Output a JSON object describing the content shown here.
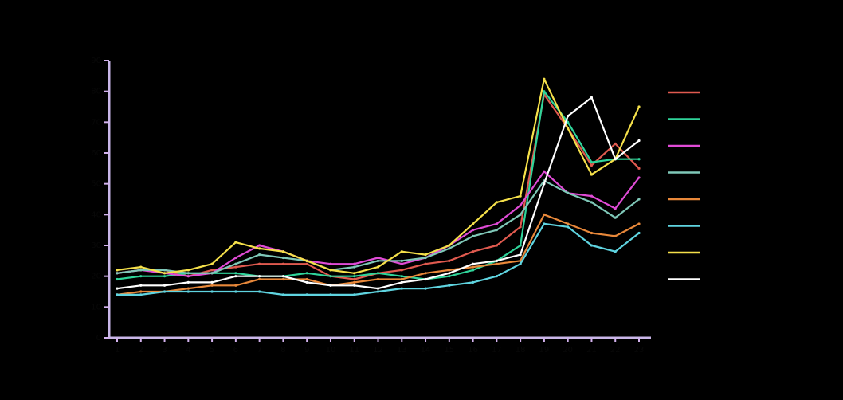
{
  "chart_data": {
    "type": "line",
    "title": "",
    "xlabel": "",
    "ylabel": "",
    "x": [
      1,
      2,
      3,
      4,
      5,
      6,
      7,
      8,
      9,
      10,
      11,
      12,
      13,
      14,
      15,
      16,
      17,
      18,
      19,
      20,
      21,
      22,
      23
    ],
    "ylim": [
      0,
      90
    ],
    "yticks": [
      0,
      10,
      20,
      30,
      40,
      50,
      60,
      70,
      80,
      90
    ],
    "grid": false,
    "legend": "right",
    "series": [
      {
        "color": "#e05a4f",
        "values": [
          21,
          22,
          22,
          20,
          22,
          23,
          24,
          24,
          24,
          20,
          19,
          21,
          22,
          24,
          25,
          28,
          30,
          36,
          79,
          68,
          56,
          63,
          55
        ]
      },
      {
        "color": "#2fd49a",
        "values": [
          19,
          20,
          20,
          21,
          21,
          21,
          20,
          20,
          21,
          20,
          20,
          21,
          20,
          19,
          20,
          22,
          25,
          30,
          80,
          70,
          57,
          58,
          58
        ]
      },
      {
        "color": "#e04bd6",
        "values": [
          21,
          22,
          21,
          20,
          21,
          26,
          30,
          28,
          25,
          24,
          24,
          26,
          24,
          26,
          30,
          35,
          37,
          43,
          54,
          47,
          46,
          42,
          52
        ]
      },
      {
        "color": "#7fc8b8",
        "values": [
          21,
          22,
          22,
          21,
          21,
          24,
          27,
          26,
          25,
          22,
          23,
          25,
          25,
          26,
          29,
          33,
          35,
          40,
          51,
          47,
          44,
          39,
          45
        ]
      },
      {
        "color": "#e8883a",
        "values": [
          14,
          15,
          15,
          16,
          17,
          17,
          19,
          19,
          19,
          17,
          18,
          19,
          19,
          21,
          22,
          23,
          24,
          25,
          40,
          37,
          34,
          33,
          37
        ]
      },
      {
        "color": "#5fd4e0",
        "values": [
          14,
          14,
          15,
          15,
          15,
          15,
          15,
          14,
          14,
          14,
          14,
          15,
          16,
          16,
          17,
          18,
          20,
          24,
          37,
          36,
          30,
          28,
          34
        ]
      },
      {
        "color": "#f5e04a",
        "values": [
          22,
          23,
          21,
          22,
          24,
          31,
          29,
          28,
          25,
          22,
          21,
          23,
          28,
          27,
          30,
          37,
          44,
          46,
          84,
          68,
          53,
          58,
          75
        ]
      },
      {
        "color": "#ffffff",
        "values": [
          16,
          17,
          17,
          18,
          18,
          20,
          20,
          20,
          18,
          17,
          17,
          16,
          18,
          19,
          21,
          24,
          25,
          27,
          50,
          72,
          78,
          58,
          64
        ]
      }
    ]
  }
}
